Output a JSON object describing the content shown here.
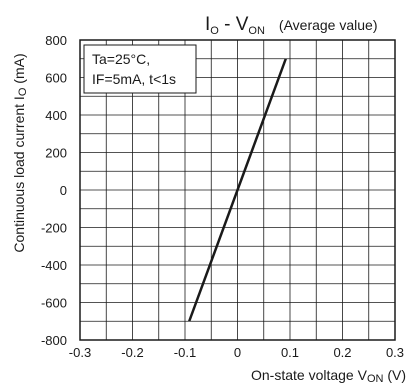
{
  "chart_data": {
    "type": "line",
    "title": {
      "main_prefix": "I",
      "main_prefix_sub": "O",
      "main_mid": " - V",
      "main_mid_sub": "ON",
      "note": "(Average value)"
    },
    "conditions": [
      "Ta=25°C,",
      "IF=5mA, t<1s"
    ],
    "xlabel": {
      "prefix": "On-state voltage V",
      "sub": "ON",
      "suffix": " (V)"
    },
    "ylabel": {
      "prefix": "Continuous load current I",
      "sub": "O",
      "suffix": " (mA)"
    },
    "xlim": [
      -0.3,
      0.3
    ],
    "ylim": [
      -800,
      800
    ],
    "x_ticks": [
      "-0.3",
      "-0.2",
      "-0.1",
      "0",
      "0.1",
      "0.2",
      "0.3"
    ],
    "y_ticks": [
      "800",
      "600",
      "400",
      "200",
      "0",
      "-200",
      "-400",
      "-600",
      "-800"
    ],
    "x_minor_step": 0.05,
    "y_step": 100,
    "grid": true,
    "series": [
      {
        "x": [
          -0.092,
          0.092
        ],
        "y": [
          -700,
          700
        ]
      }
    ],
    "colors": {
      "line": "#1a1a1a",
      "grid": "#1a1a1a",
      "background": "#ffffff"
    }
  }
}
